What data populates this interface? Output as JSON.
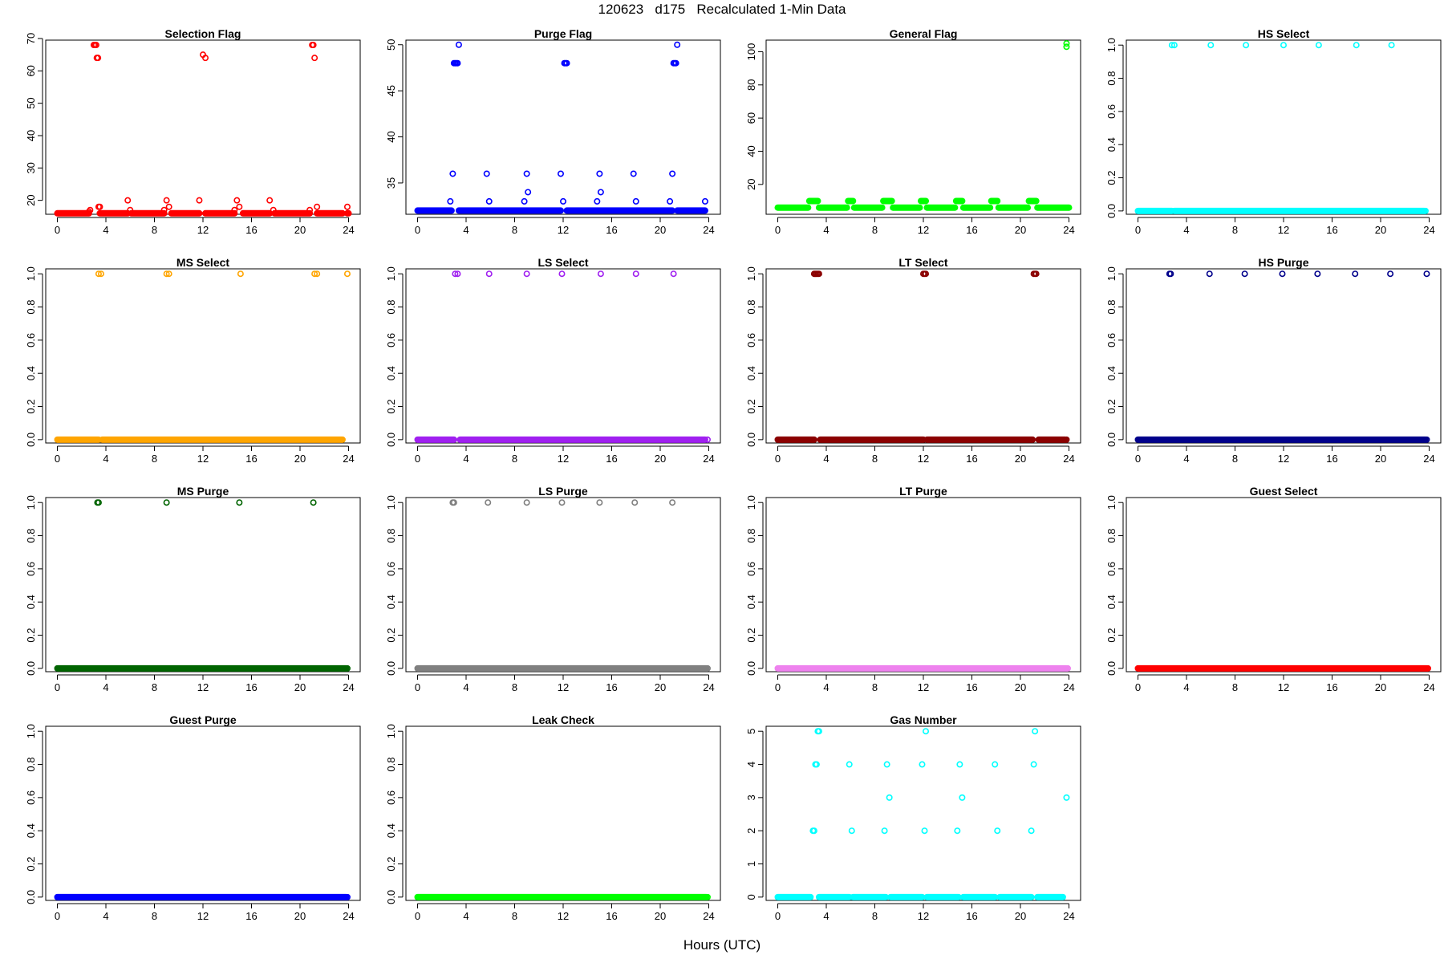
{
  "title": "120623   d175   Recalculated 1-Min Data",
  "xlabel": "Hours (UTC)",
  "chart_data": [
    {
      "type": "scatter",
      "title": "Selection Flag",
      "color": "#ff0000",
      "xlim": [
        0,
        24
      ],
      "ylim": [
        15.7,
        69.5
      ],
      "xticks": [
        0,
        4,
        8,
        12,
        16,
        20,
        24
      ],
      "yticks": [
        20,
        30,
        40,
        50,
        60,
        70
      ],
      "baseline": {
        "value": 16,
        "gaps": [
          2.6,
          3.5,
          5.8,
          6.1,
          8.8,
          9.4,
          11.7,
          12.2,
          14.6,
          15.3,
          17.5,
          17.9,
          20.8,
          21.4,
          23.5,
          23.9
        ]
      },
      "points": [
        [
          2.6,
          16.5
        ],
        [
          2.7,
          17
        ],
        [
          3.0,
          68
        ],
        [
          3.1,
          68
        ],
        [
          3.2,
          68
        ],
        [
          3.25,
          64
        ],
        [
          3.35,
          64
        ],
        [
          3.4,
          18
        ],
        [
          3.5,
          18
        ],
        [
          5.8,
          20
        ],
        [
          6.0,
          17
        ],
        [
          8.8,
          17
        ],
        [
          9.0,
          20
        ],
        [
          9.2,
          18
        ],
        [
          11.7,
          20
        ],
        [
          12.0,
          65
        ],
        [
          12.2,
          64
        ],
        [
          14.6,
          17
        ],
        [
          14.8,
          20
        ],
        [
          15.0,
          18
        ],
        [
          17.5,
          20
        ],
        [
          17.8,
          17
        ],
        [
          20.8,
          17
        ],
        [
          21.0,
          68
        ],
        [
          21.1,
          68
        ],
        [
          21.2,
          64
        ],
        [
          21.4,
          18
        ],
        [
          23.9,
          18
        ]
      ]
    },
    {
      "type": "scatter",
      "title": "Purge Flag",
      "color": "#0000ff",
      "xlim": [
        0,
        24
      ],
      "ylim": [
        31.6,
        50.5
      ],
      "xticks": [
        0,
        4,
        8,
        12,
        16,
        20,
        24
      ],
      "yticks": [
        35,
        40,
        45,
        50
      ],
      "baseline": {
        "value": 32,
        "gaps": [
          2.8,
          3.4,
          11.8,
          12.3,
          21.0,
          21.4,
          23.7,
          24
        ]
      },
      "points": [
        [
          2.7,
          33
        ],
        [
          2.9,
          36
        ],
        [
          3.0,
          48
        ],
        [
          3.1,
          48
        ],
        [
          3.2,
          48
        ],
        [
          3.3,
          48
        ],
        [
          3.4,
          50
        ],
        [
          5.7,
          36
        ],
        [
          5.9,
          33
        ],
        [
          8.8,
          33
        ],
        [
          9.0,
          36
        ],
        [
          9.1,
          34
        ],
        [
          11.8,
          36
        ],
        [
          12.0,
          33
        ],
        [
          12.1,
          48
        ],
        [
          12.2,
          48
        ],
        [
          12.3,
          48
        ],
        [
          14.8,
          33
        ],
        [
          15.0,
          36
        ],
        [
          15.1,
          34
        ],
        [
          17.8,
          36
        ],
        [
          18.0,
          33
        ],
        [
          20.8,
          33
        ],
        [
          21.0,
          36
        ],
        [
          21.1,
          48
        ],
        [
          21.2,
          48
        ],
        [
          21.3,
          48
        ],
        [
          21.4,
          50
        ],
        [
          23.7,
          33
        ]
      ]
    },
    {
      "type": "scatter",
      "title": "General Flag",
      "color": "#00ff00",
      "xlim": [
        0,
        24
      ],
      "ylim": [
        2,
        107
      ],
      "xticks": [
        0,
        4,
        8,
        12,
        16,
        20,
        24
      ],
      "yticks": [
        20,
        40,
        60,
        80,
        100
      ],
      "baseline": {
        "value": 6,
        "gaps": [
          2.5,
          3.4,
          5.7,
          6.3,
          8.6,
          9.5,
          11.7,
          12.3,
          14.6,
          15.3,
          17.5,
          18.2,
          20.6,
          21.4
        ]
      },
      "bumps": {
        "value": 10,
        "ranges": [
          [
            2.6,
            3.3
          ],
          [
            5.8,
            6.2
          ],
          [
            8.7,
            9.4
          ],
          [
            11.8,
            12.2
          ],
          [
            14.7,
            15.2
          ],
          [
            17.6,
            18.1
          ],
          [
            20.7,
            21.3
          ]
        ]
      },
      "points": [
        [
          23.8,
          103
        ],
        [
          23.8,
          105
        ]
      ]
    },
    {
      "type": "scatter",
      "title": "HS Select",
      "color": "#00ffff",
      "xlim": [
        0,
        24
      ],
      "ylim": [
        -0.02,
        1.03
      ],
      "xticks": [
        0,
        4,
        8,
        12,
        16,
        20,
        24
      ],
      "yticks": [
        0.0,
        0.2,
        0.4,
        0.6,
        0.8,
        1.0
      ],
      "baseline": {
        "value": 0,
        "gaps": [
          2.8,
          3.0,
          23.6,
          24
        ]
      },
      "points": [
        [
          2.8,
          1
        ],
        [
          3.0,
          1
        ],
        [
          6.0,
          1
        ],
        [
          8.9,
          1
        ],
        [
          12.0,
          1
        ],
        [
          14.9,
          1
        ],
        [
          18.0,
          1
        ],
        [
          20.9,
          1
        ],
        [
          23.7,
          0
        ]
      ]
    },
    {
      "type": "scatter",
      "title": "MS Select",
      "color": "#ffa500",
      "xlim": [
        0,
        24
      ],
      "ylim": [
        -0.02,
        1.03
      ],
      "xticks": [
        0,
        4,
        8,
        12,
        16,
        20,
        24
      ],
      "yticks": [
        0.0,
        0.2,
        0.4,
        0.6,
        0.8,
        1.0
      ],
      "baseline": {
        "value": 0,
        "gaps": [
          3.4,
          3.7,
          23.5,
          24
        ]
      },
      "points": [
        [
          3.4,
          1
        ],
        [
          3.6,
          1
        ],
        [
          9.0,
          1
        ],
        [
          9.2,
          1
        ],
        [
          15.1,
          1
        ],
        [
          21.2,
          1
        ],
        [
          21.4,
          1
        ],
        [
          23.9,
          1
        ]
      ]
    },
    {
      "type": "scatter",
      "title": "LS Select",
      "color": "#a020f0",
      "xlim": [
        0,
        24
      ],
      "ylim": [
        -0.02,
        1.03
      ],
      "xticks": [
        0,
        4,
        8,
        12,
        16,
        20,
        24
      ],
      "yticks": [
        0.0,
        0.2,
        0.4,
        0.6,
        0.8,
        1.0
      ],
      "baseline": {
        "value": 0,
        "gaps": [
          3.0,
          3.5,
          23.7,
          24
        ]
      },
      "points": [
        [
          3.1,
          1
        ],
        [
          3.3,
          1
        ],
        [
          5.9,
          1
        ],
        [
          9.0,
          1
        ],
        [
          11.9,
          1
        ],
        [
          15.1,
          1
        ],
        [
          18.0,
          1
        ],
        [
          21.1,
          1
        ],
        [
          23.9,
          0
        ]
      ]
    },
    {
      "type": "scatter",
      "title": "LT Select",
      "color": "#8b0000",
      "xlim": [
        0,
        24
      ],
      "ylim": [
        -0.02,
        1.03
      ],
      "xticks": [
        0,
        4,
        8,
        12,
        16,
        20,
        24
      ],
      "yticks": [
        0.0,
        0.2,
        0.4,
        0.6,
        0.8,
        1.0
      ],
      "baseline": {
        "value": 0,
        "gaps": [
          3.0,
          3.5,
          12.0,
          12.3,
          21.0,
          21.5,
          23.7,
          24
        ]
      },
      "points": [
        [
          3.0,
          1
        ],
        [
          3.1,
          1
        ],
        [
          3.2,
          1
        ],
        [
          3.3,
          1
        ],
        [
          3.4,
          1
        ],
        [
          12.0,
          1
        ],
        [
          12.1,
          1
        ],
        [
          12.2,
          1
        ],
        [
          21.1,
          1
        ],
        [
          21.2,
          1
        ],
        [
          21.3,
          1
        ],
        [
          23.8,
          0
        ]
      ]
    },
    {
      "type": "scatter",
      "title": "HS Purge",
      "color": "#00008b",
      "xlim": [
        0,
        24
      ],
      "ylim": [
        -0.02,
        1.03
      ],
      "xticks": [
        0,
        4,
        8,
        12,
        16,
        20,
        24
      ],
      "yticks": [
        0.0,
        0.2,
        0.4,
        0.6,
        0.8,
        1.0
      ],
      "baseline": {
        "value": 0,
        "gaps": [
          23.7,
          24
        ]
      },
      "points": [
        [
          2.6,
          1
        ],
        [
          2.7,
          1
        ],
        [
          5.9,
          1
        ],
        [
          8.8,
          1
        ],
        [
          11.9,
          1
        ],
        [
          14.8,
          1
        ],
        [
          17.9,
          1
        ],
        [
          20.8,
          1
        ],
        [
          23.8,
          1
        ],
        [
          23.8,
          0
        ]
      ]
    },
    {
      "type": "scatter",
      "title": "MS Purge",
      "color": "#006400",
      "xlim": [
        0,
        24
      ],
      "ylim": [
        -0.02,
        1.03
      ],
      "xticks": [
        0,
        4,
        8,
        12,
        16,
        20,
        24
      ],
      "yticks": [
        0.0,
        0.2,
        0.4,
        0.6,
        0.8,
        1.0
      ],
      "baseline": {
        "value": 0,
        "gaps": [
          23.8,
          24
        ]
      },
      "points": [
        [
          3.3,
          1
        ],
        [
          3.4,
          1
        ],
        [
          9.0,
          1
        ],
        [
          15.0,
          1
        ],
        [
          21.1,
          1
        ],
        [
          23.9,
          0
        ]
      ]
    },
    {
      "type": "scatter",
      "title": "LS Purge",
      "color": "#808080",
      "xlim": [
        0,
        24
      ],
      "ylim": [
        -0.02,
        1.03
      ],
      "xticks": [
        0,
        4,
        8,
        12,
        16,
        20,
        24
      ],
      "yticks": [
        0.0,
        0.2,
        0.4,
        0.6,
        0.8,
        1.0
      ],
      "baseline": {
        "value": 0,
        "gaps": [
          23.8,
          24
        ]
      },
      "points": [
        [
          2.9,
          1
        ],
        [
          3.0,
          1
        ],
        [
          5.8,
          1
        ],
        [
          9.0,
          1
        ],
        [
          11.9,
          1
        ],
        [
          15.0,
          1
        ],
        [
          17.9,
          1
        ],
        [
          21.0,
          1
        ],
        [
          23.9,
          0
        ]
      ]
    },
    {
      "type": "scatter",
      "title": "LT Purge",
      "color": "#ee82ee",
      "xlim": [
        0,
        24
      ],
      "ylim": [
        -0.02,
        1.03
      ],
      "xticks": [
        0,
        4,
        8,
        12,
        16,
        20,
        24
      ],
      "yticks": [
        0.0,
        0.2,
        0.4,
        0.6,
        0.8,
        1.0
      ],
      "baseline": {
        "value": 0,
        "gaps": [
          23.8,
          24
        ]
      },
      "points": [
        [
          23.9,
          0
        ]
      ]
    },
    {
      "type": "scatter",
      "title": "Guest Select",
      "color": "#ff0000",
      "xlim": [
        0,
        24
      ],
      "ylim": [
        -0.02,
        1.03
      ],
      "xticks": [
        0,
        4,
        8,
        12,
        16,
        20,
        24
      ],
      "yticks": [
        0.0,
        0.2,
        0.4,
        0.6,
        0.8,
        1.0
      ],
      "baseline": {
        "value": 0,
        "gaps": [
          23.8,
          24
        ]
      },
      "points": [
        [
          23.9,
          0
        ]
      ]
    },
    {
      "type": "scatter",
      "title": "Guest Purge",
      "color": "#0000ff",
      "xlim": [
        0,
        24
      ],
      "ylim": [
        -0.02,
        1.03
      ],
      "xticks": [
        0,
        4,
        8,
        12,
        16,
        20,
        24
      ],
      "yticks": [
        0.0,
        0.2,
        0.4,
        0.6,
        0.8,
        1.0
      ],
      "baseline": {
        "value": 0,
        "gaps": [
          23.8,
          24
        ]
      },
      "points": [
        [
          23.9,
          0
        ]
      ]
    },
    {
      "type": "scatter",
      "title": "Leak Check",
      "color": "#00ff00",
      "xlim": [
        0,
        24
      ],
      "ylim": [
        -0.02,
        1.03
      ],
      "xticks": [
        0,
        4,
        8,
        12,
        16,
        20,
        24
      ],
      "yticks": [
        0.0,
        0.2,
        0.4,
        0.6,
        0.8,
        1.0
      ],
      "baseline": {
        "value": 0,
        "gaps": [
          23.8,
          24
        ]
      },
      "points": [
        [
          23.9,
          0
        ]
      ]
    },
    {
      "type": "scatter",
      "title": "Gas Number",
      "color": "#00ffff",
      "xlim": [
        0,
        24
      ],
      "ylim": [
        -0.1,
        5.15
      ],
      "xticks": [
        0,
        4,
        8,
        12,
        16,
        20,
        24
      ],
      "yticks": [
        0,
        1,
        2,
        3,
        4,
        5
      ],
      "baseline": {
        "value": 0,
        "gaps": [
          2.7,
          3.4,
          5.9,
          6.2,
          8.9,
          9.3,
          11.9,
          12.3,
          14.9,
          15.3,
          17.9,
          18.3,
          20.9,
          21.4,
          23.5,
          24
        ]
      },
      "points": [
        [
          2.9,
          2
        ],
        [
          3.0,
          2
        ],
        [
          3.1,
          4
        ],
        [
          3.2,
          4
        ],
        [
          3.3,
          5
        ],
        [
          3.4,
          5
        ],
        [
          5.9,
          4
        ],
        [
          6.1,
          2
        ],
        [
          8.8,
          2
        ],
        [
          9.0,
          4
        ],
        [
          9.2,
          3
        ],
        [
          11.9,
          4
        ],
        [
          12.1,
          2
        ],
        [
          12.2,
          5
        ],
        [
          14.8,
          2
        ],
        [
          15.0,
          4
        ],
        [
          15.2,
          3
        ],
        [
          17.9,
          4
        ],
        [
          18.1,
          2
        ],
        [
          20.9,
          2
        ],
        [
          21.1,
          4
        ],
        [
          21.2,
          5
        ],
        [
          23.8,
          3
        ]
      ]
    }
  ]
}
